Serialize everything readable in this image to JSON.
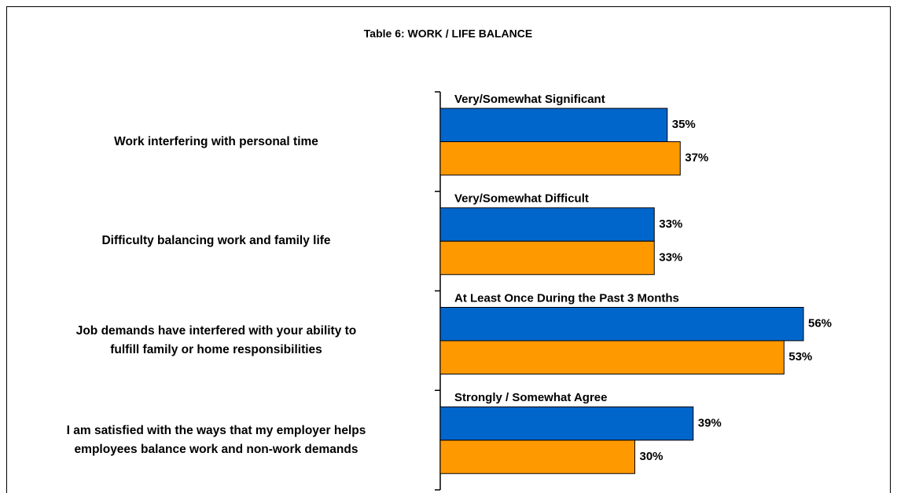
{
  "chart_data": {
    "type": "bar",
    "orientation": "horizontal",
    "title": "Table 6: WORK / LIFE BALANCE",
    "categories": [
      "Work  interfering with personal time",
      "Difficulty balancing work and family life",
      "Job demands have interfered with your ability to\nfulfill family or home responsibilities",
      "I am satisfied with the ways that my employer helps\nemployees balance work and non-work demands"
    ],
    "group_labels": [
      "Very/Somewhat Significant",
      "Very/Somewhat Difficult",
      "At Least Once During the Past 3 Months",
      "Strongly / Somewhat Agree"
    ],
    "series": [
      {
        "color": "#0066cc",
        "values": [
          35,
          33,
          56,
          39
        ],
        "value_labels": [
          "35%",
          "33%",
          "56%",
          "39%"
        ]
      },
      {
        "color": "#ff9900",
        "values": [
          37,
          33,
          53,
          30
        ],
        "value_labels": [
          "37%",
          "33%",
          "53%",
          "30%"
        ]
      }
    ]
  }
}
